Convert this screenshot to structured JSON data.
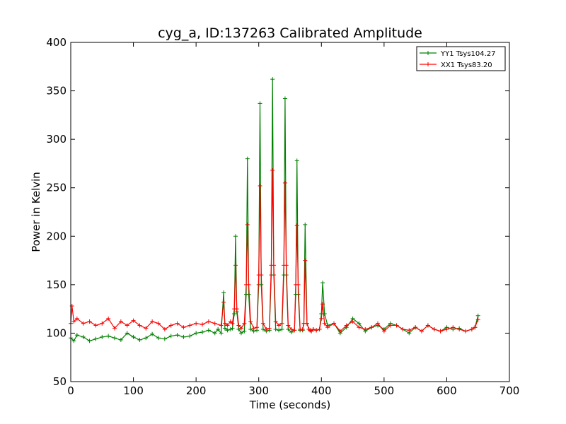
{
  "chart_data": {
    "type": "line",
    "title": "cyg_a, ID:137263 Calibrated Amplitude",
    "xlabel": "Time (seconds)",
    "ylabel": "Power in Kelvin",
    "xlim": [
      0,
      700
    ],
    "ylim": [
      50,
      400
    ],
    "xticks": [
      0,
      100,
      200,
      300,
      400,
      500,
      600,
      700
    ],
    "yticks": [
      50,
      100,
      150,
      200,
      250,
      300,
      350,
      400
    ],
    "grid": false,
    "legend_position": "top-right",
    "marker": "+",
    "series": [
      {
        "name": "YY1 Tsys104.27",
        "color": "#008000",
        "x": [
          0,
          5,
          10,
          20,
          30,
          40,
          50,
          60,
          70,
          80,
          90,
          100,
          110,
          120,
          130,
          140,
          150,
          160,
          170,
          180,
          190,
          200,
          210,
          220,
          230,
          235,
          240,
          244,
          246,
          250,
          255,
          258,
          261,
          263,
          265,
          268,
          272,
          277,
          280,
          282,
          284,
          287,
          292,
          297,
          300,
          302,
          304,
          307,
          312,
          317,
          320,
          322,
          324,
          327,
          332,
          337,
          340,
          342,
          344,
          347,
          352,
          357,
          359,
          361,
          363,
          366,
          370,
          372,
          374,
          377,
          380,
          382,
          384,
          387,
          392,
          397,
          400,
          402,
          405,
          410,
          420,
          430,
          440,
          450,
          460,
          470,
          480,
          490,
          500,
          510,
          520,
          530,
          540,
          550,
          560,
          570,
          580,
          590,
          600,
          610,
          620,
          630,
          640,
          645,
          650
        ],
        "y": [
          95,
          92,
          98,
          96,
          92,
          94,
          96,
          97,
          95,
          93,
          100,
          96,
          93,
          95,
          99,
          95,
          94,
          97,
          98,
          96,
          97,
          100,
          101,
          103,
          100,
          104,
          100,
          142,
          105,
          103,
          104,
          105,
          120,
          200,
          122,
          104,
          100,
          102,
          140,
          280,
          140,
          104,
          102,
          103,
          150,
          337,
          150,
          104,
          102,
          103,
          160,
          362,
          160,
          104,
          103,
          104,
          160,
          342,
          160,
          104,
          101,
          103,
          140,
          278,
          140,
          103,
          103,
          110,
          212,
          110,
          104,
          103,
          102,
          104,
          103,
          104,
          120,
          152,
          120,
          108,
          110,
          100,
          106,
          115,
          110,
          102,
          106,
          108,
          104,
          110,
          108,
          104,
          100,
          106,
          102,
          108,
          104,
          102,
          106,
          104,
          105,
          102,
          104,
          106,
          118
        ]
      },
      {
        "name": "XX1 Tsys83.20",
        "color": "#ff0000",
        "x": [
          0,
          2,
          5,
          10,
          20,
          30,
          40,
          50,
          60,
          70,
          80,
          90,
          100,
          110,
          120,
          130,
          140,
          150,
          160,
          170,
          180,
          190,
          200,
          210,
          220,
          230,
          240,
          244,
          246,
          250,
          255,
          258,
          261,
          263,
          265,
          268,
          272,
          277,
          280,
          282,
          284,
          287,
          292,
          297,
          300,
          302,
          304,
          307,
          312,
          317,
          320,
          322,
          324,
          327,
          332,
          337,
          340,
          342,
          344,
          347,
          352,
          357,
          359,
          361,
          363,
          366,
          370,
          372,
          374,
          377,
          380,
          382,
          384,
          387,
          392,
          397,
          400,
          402,
          405,
          410,
          420,
          430,
          440,
          450,
          460,
          470,
          480,
          490,
          500,
          510,
          520,
          530,
          540,
          550,
          560,
          570,
          580,
          590,
          600,
          610,
          620,
          630,
          640,
          645,
          650
        ],
        "y": [
          110,
          128,
          112,
          115,
          110,
          112,
          108,
          110,
          115,
          105,
          112,
          108,
          113,
          108,
          105,
          112,
          110,
          104,
          108,
          110,
          106,
          108,
          110,
          109,
          112,
          110,
          108,
          132,
          110,
          108,
          112,
          110,
          125,
          170,
          125,
          108,
          105,
          110,
          150,
          212,
          150,
          112,
          105,
          106,
          160,
          252,
          160,
          110,
          104,
          105,
          170,
          268,
          170,
          112,
          108,
          110,
          170,
          255,
          170,
          108,
          104,
          103,
          150,
          211,
          150,
          104,
          104,
          110,
          175,
          110,
          104,
          103,
          102,
          104,
          103,
          104,
          115,
          130,
          110,
          106,
          110,
          102,
          108,
          112,
          106,
          104,
          106,
          110,
          102,
          108,
          108,
          104,
          103,
          106,
          102,
          108,
          104,
          102,
          104,
          106,
          104,
          102,
          104,
          106,
          114
        ]
      }
    ]
  }
}
